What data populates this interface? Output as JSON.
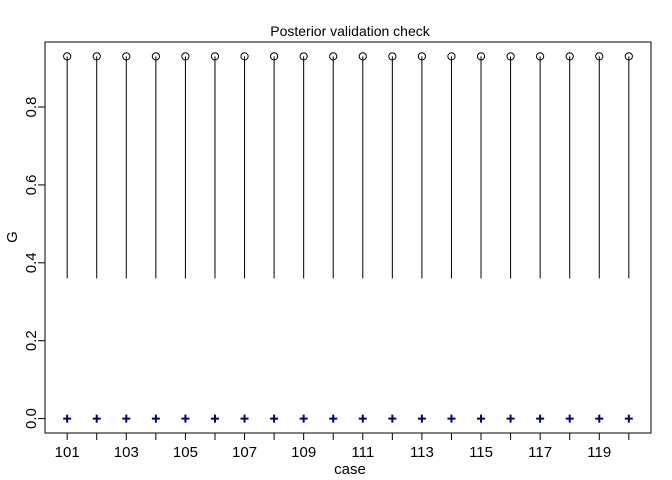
{
  "chart_data": {
    "type": "scatter",
    "title": "Posterior validation check",
    "xlabel": "case",
    "ylabel": "G",
    "xlim": [
      100.25,
      120.75
    ],
    "ylim": [
      -0.037,
      0.967
    ],
    "x_tick_values": [
      101,
      102,
      103,
      104,
      105,
      106,
      107,
      108,
      109,
      110,
      111,
      112,
      113,
      114,
      115,
      116,
      117,
      118,
      119,
      120
    ],
    "x_tick_labels": [
      "101",
      "",
      "103",
      "",
      "105",
      "",
      "107",
      "",
      "109",
      "",
      "111",
      "",
      "113",
      "",
      "115",
      "",
      "117",
      "",
      "119",
      ""
    ],
    "y_tick_values": [
      0.0,
      0.2,
      0.4,
      0.6,
      0.8
    ],
    "y_tick_labels": [
      "0.0",
      "0.2",
      "0.4",
      "0.6",
      "0.8"
    ],
    "grid": false,
    "legend": "none",
    "cases": [
      101,
      102,
      103,
      104,
      105,
      106,
      107,
      108,
      109,
      110,
      111,
      112,
      113,
      114,
      115,
      116,
      117,
      118,
      119,
      120
    ],
    "interval_low": [
      0.36,
      0.36,
      0.36,
      0.36,
      0.36,
      0.36,
      0.36,
      0.36,
      0.36,
      0.36,
      0.36,
      0.36,
      0.36,
      0.36,
      0.36,
      0.36,
      0.36,
      0.36,
      0.36,
      0.36
    ],
    "interval_high": [
      0.93,
      0.93,
      0.93,
      0.93,
      0.93,
      0.93,
      0.93,
      0.93,
      0.93,
      0.93,
      0.93,
      0.93,
      0.93,
      0.93,
      0.93,
      0.93,
      0.93,
      0.93,
      0.93,
      0.93
    ],
    "point_values": [
      0.93,
      0.93,
      0.93,
      0.93,
      0.93,
      0.93,
      0.93,
      0.93,
      0.93,
      0.93,
      0.93,
      0.93,
      0.93,
      0.93,
      0.93,
      0.93,
      0.93,
      0.93,
      0.93,
      0.93
    ],
    "point_marker": "open-circle",
    "observed_values": [
      0,
      0,
      0,
      0,
      0,
      0,
      0,
      0,
      0,
      0,
      0,
      0,
      0,
      0,
      0,
      0,
      0,
      0,
      0,
      0
    ],
    "observed_marker": "plus",
    "observed_color": "#00008b",
    "line_color": "#000000"
  }
}
